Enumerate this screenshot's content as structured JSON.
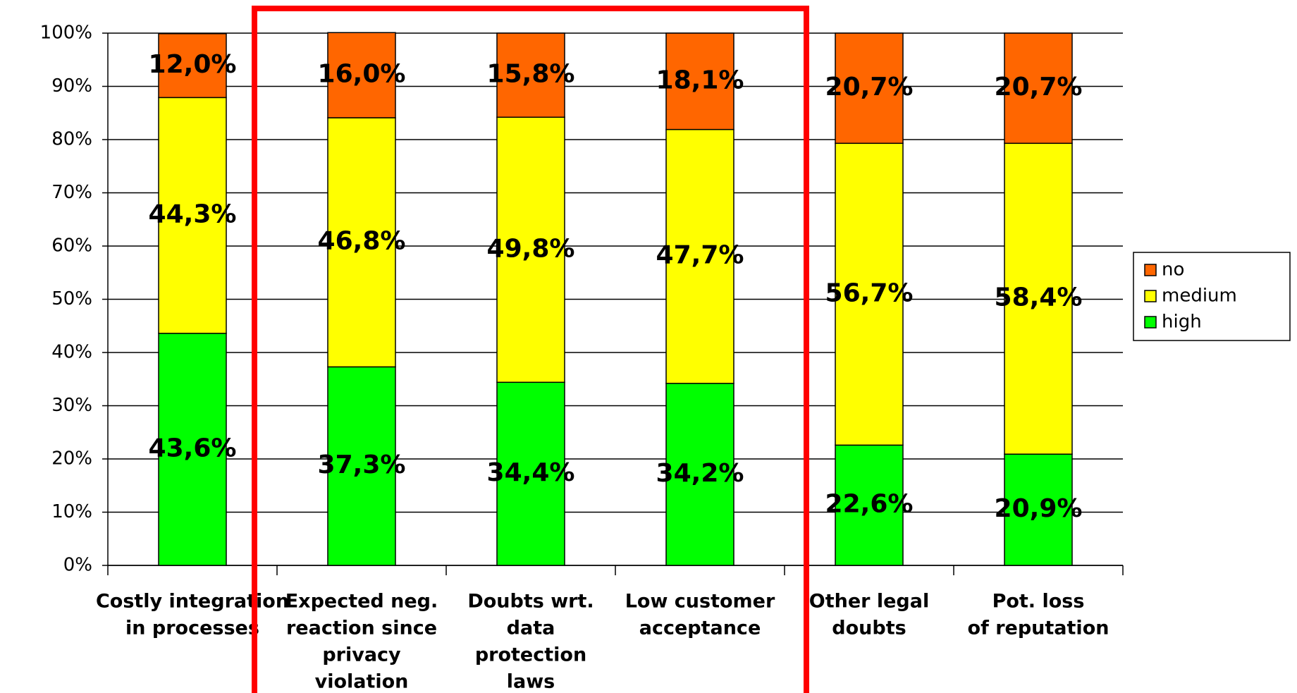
{
  "chart_data": {
    "type": "stacked-bar",
    "categories": [
      [
        "Costly integration",
        "in processes"
      ],
      [
        "Expected neg.",
        "reaction since",
        "privacy",
        "violation"
      ],
      [
        "Doubts wrt.",
        "data",
        "protection",
        "laws"
      ],
      [
        "Low customer",
        "acceptance"
      ],
      [
        "Other legal",
        "doubts"
      ],
      [
        "Pot. loss",
        "of reputation"
      ]
    ],
    "series": [
      {
        "name": "high",
        "color": "#00ff00",
        "values": [
          43.6,
          37.3,
          34.4,
          34.2,
          22.6,
          20.9
        ],
        "value_labels": [
          "43,6%",
          "37,3%",
          "34,4%",
          "34,2%",
          "22,6%",
          "20,9%"
        ]
      },
      {
        "name": "medium",
        "color": "#ffff00",
        "values": [
          44.3,
          46.8,
          49.8,
          47.7,
          56.7,
          58.4
        ],
        "value_labels": [
          "44,3%",
          "46,8%",
          "49,8%",
          "47,7%",
          "56,7%",
          "58,4%"
        ]
      },
      {
        "name": "no",
        "color": "#ff6600",
        "values": [
          12.0,
          16.0,
          15.8,
          18.1,
          20.7,
          20.7
        ],
        "value_labels": [
          "12,0%",
          "16,0%",
          "15,8%",
          "18,1%",
          "20,7%",
          "20,7%"
        ]
      }
    ],
    "ylim": [
      0,
      100
    ],
    "yticks": [
      {
        "value": 0,
        "label": "0%"
      },
      {
        "value": 10,
        "label": "10%"
      },
      {
        "value": 20,
        "label": "20%"
      },
      {
        "value": 30,
        "label": "30%"
      },
      {
        "value": 40,
        "label": "40%"
      },
      {
        "value": 50,
        "label": "50%"
      },
      {
        "value": 60,
        "label": "60%"
      },
      {
        "value": 70,
        "label": "70%"
      },
      {
        "value": 80,
        "label": "80%"
      },
      {
        "value": 90,
        "label": "90%"
      },
      {
        "value": 100,
        "label": "100%"
      }
    ],
    "grid": true
  }
}
